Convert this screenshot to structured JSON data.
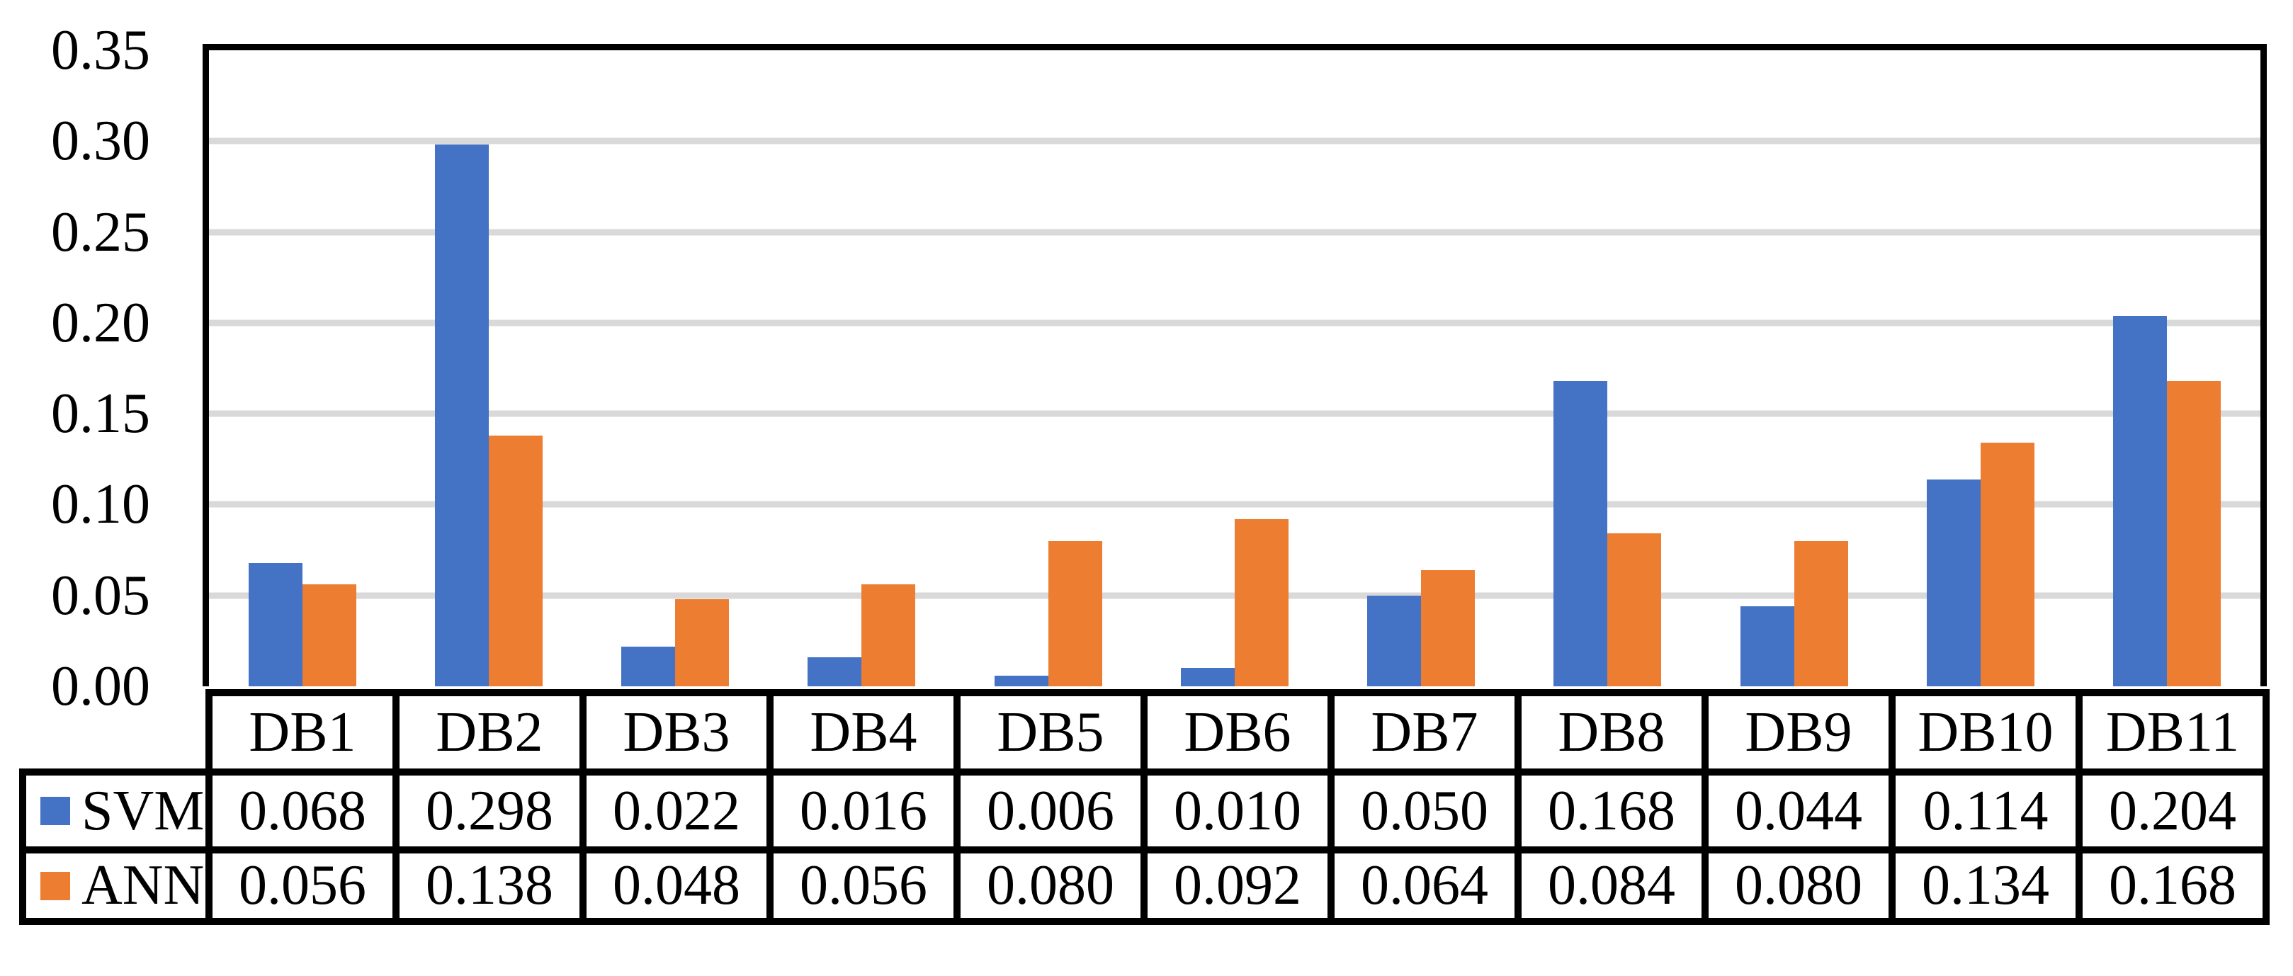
{
  "chart_data": {
    "type": "bar",
    "title": "",
    "xlabel": "",
    "ylabel": "",
    "categories": [
      "DB1",
      "DB2",
      "DB3",
      "DB4",
      "DB5",
      "DB6",
      "DB7",
      "DB8",
      "DB9",
      "DB10",
      "DB11"
    ],
    "series": [
      {
        "name": "SVM",
        "color": "#4472C4",
        "values": [
          0.068,
          0.298,
          0.022,
          0.016,
          0.006,
          0.01,
          0.05,
          0.168,
          0.044,
          0.114,
          0.204
        ],
        "cell_texts": [
          "0.068",
          "0.298",
          "0.022",
          "0.016",
          "0.006",
          "0.010",
          "0.050",
          "0.168",
          "0.044",
          "0.114",
          "0.204"
        ]
      },
      {
        "name": "ANN",
        "color": "#ED7D31",
        "values": [
          0.056,
          0.138,
          0.048,
          0.056,
          0.08,
          0.092,
          0.064,
          0.084,
          0.08,
          0.134,
          0.168
        ],
        "cell_texts": [
          "0.056",
          "0.138",
          "0.048",
          "0.056",
          "0.080",
          "0.092",
          "0.064",
          "0.084",
          "0.080",
          "0.134",
          "0.168"
        ]
      }
    ],
    "ylim": [
      0,
      0.35
    ],
    "ytick_step": 0.05,
    "ytick_labels": [
      "0.00",
      "0.05",
      "0.10",
      "0.15",
      "0.20",
      "0.25",
      "0.30",
      "0.35"
    ],
    "grid": true,
    "gridline_color": "#D9D9D9",
    "plot_border_color": "#000000",
    "text_color": "#000000",
    "legend_position": "data-table-left"
  }
}
